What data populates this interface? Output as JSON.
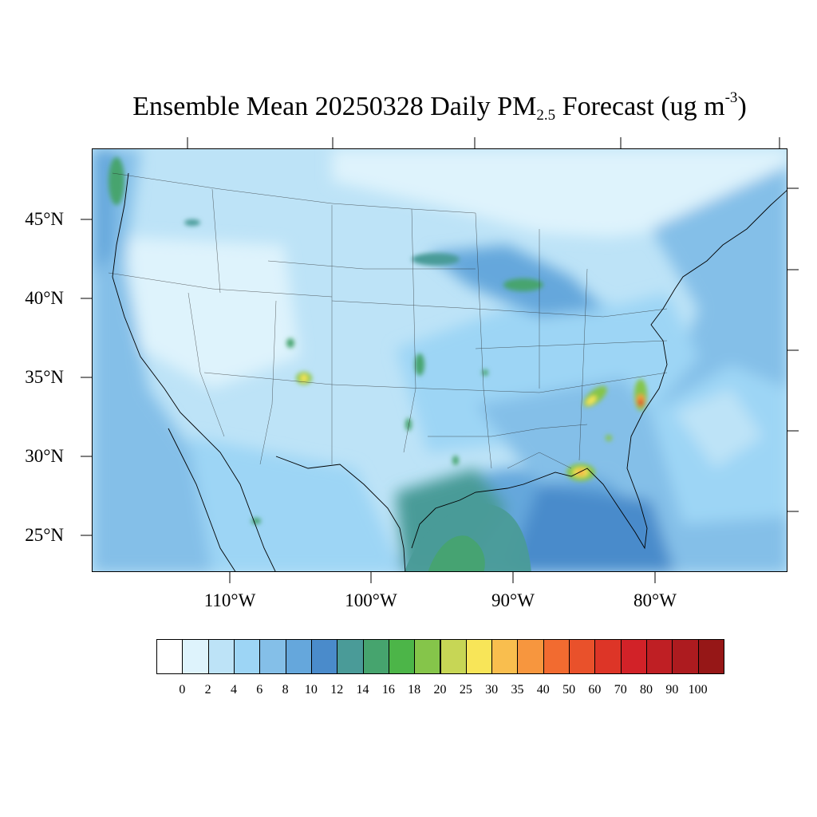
{
  "title": {
    "prefix": "Ensemble Mean 20250328 Daily PM",
    "subscript": "2.5",
    "middle": " Forecast (ug m",
    "superscript": "-3",
    "suffix": ")"
  },
  "map": {
    "region": "Contiguous United States",
    "lat_labels": [
      "45°N",
      "40°N",
      "35°N",
      "30°N",
      "25°N"
    ],
    "lon_labels": [
      "110°W",
      "100°W",
      "90°W",
      "80°W"
    ]
  },
  "colorbar": {
    "labels": [
      "0",
      "2",
      "4",
      "6",
      "8",
      "10",
      "12",
      "14",
      "16",
      "18",
      "20",
      "25",
      "30",
      "35",
      "40",
      "50",
      "60",
      "70",
      "80",
      "90",
      "100"
    ],
    "colors": [
      "#ffffff",
      "#def3fc",
      "#bde3f7",
      "#9dd5f5",
      "#84bfe8",
      "#65a7dc",
      "#4a8bcb",
      "#4a9b98",
      "#46a46e",
      "#4cb548",
      "#85c54a",
      "#c7d655",
      "#f8e558",
      "#f9be4e",
      "#f7963e",
      "#f26b30",
      "#e9512b",
      "#dd3527",
      "#d22228",
      "#bf1f24",
      "#ad1b1f",
      "#961717"
    ]
  }
}
